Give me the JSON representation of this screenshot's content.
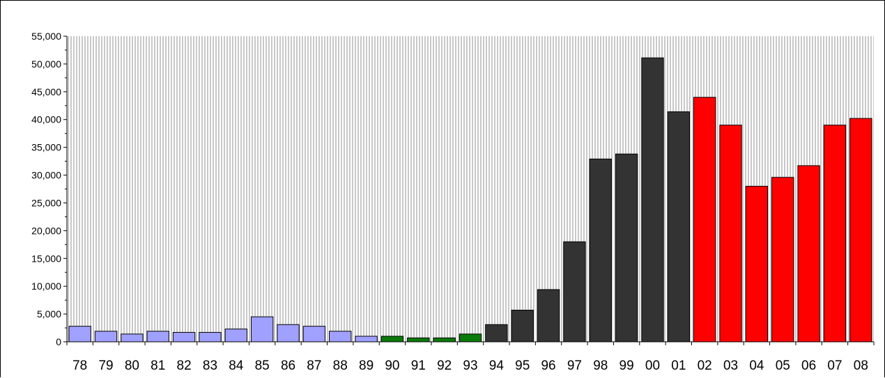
{
  "chart_data": {
    "type": "bar",
    "title": "",
    "xlabel": "",
    "ylabel": "",
    "ylim": [
      0,
      55000
    ],
    "y_ticks": [
      0,
      5000,
      10000,
      15000,
      20000,
      25000,
      30000,
      35000,
      40000,
      45000,
      50000,
      55000
    ],
    "y_tick_labels": [
      "0",
      "5,000",
      "10,000",
      "15,000",
      "20,000",
      "25,000",
      "30,000",
      "35,000",
      "40,000",
      "45,000",
      "50,000",
      "55,000"
    ],
    "grid": "vertical hatch background",
    "categories": [
      "78",
      "79",
      "80",
      "81",
      "82",
      "83",
      "84",
      "85",
      "86",
      "87",
      "88",
      "89",
      "90",
      "91",
      "92",
      "93",
      "94",
      "95",
      "96",
      "97",
      "98",
      "99",
      "00",
      "01",
      "02",
      "03",
      "04",
      "05",
      "06",
      "07",
      "08"
    ],
    "values": [
      2800,
      1900,
      1400,
      1900,
      1700,
      1700,
      2300,
      4500,
      3100,
      2800,
      1900,
      1000,
      1000,
      700,
      700,
      1400,
      3100,
      5700,
      9400,
      18000,
      32900,
      33800,
      51100,
      41400,
      44000,
      39000,
      28000,
      29600,
      31700,
      39000,
      40200
    ],
    "colors": [
      "#a0a0ff",
      "#a0a0ff",
      "#a0a0ff",
      "#a0a0ff",
      "#a0a0ff",
      "#a0a0ff",
      "#a0a0ff",
      "#a0a0ff",
      "#a0a0ff",
      "#a0a0ff",
      "#a0a0ff",
      "#a0a0ff",
      "#0a7a0a",
      "#0a7a0a",
      "#0a7a0a",
      "#0a7a0a",
      "#333333",
      "#333333",
      "#333333",
      "#333333",
      "#333333",
      "#333333",
      "#333333",
      "#333333",
      "#ff0000",
      "#ff0000",
      "#ff0000",
      "#ff0000",
      "#ff0000",
      "#ff0000",
      "#ff0000"
    ]
  }
}
